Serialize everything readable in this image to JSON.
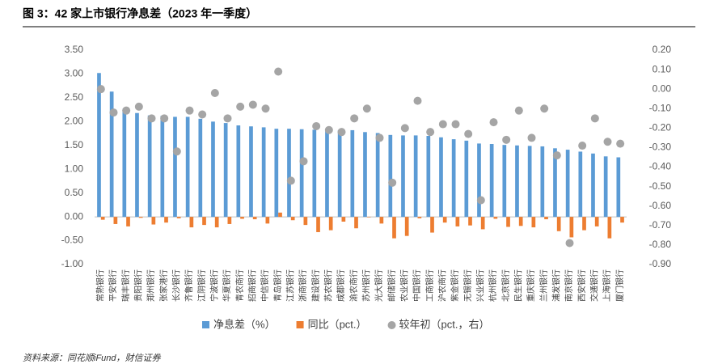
{
  "chart_data": {
    "type": "bar_dot",
    "title": "图 3：42 家上市银行净息差（2023 年一季度）",
    "source": "资料来源：同花顺iFund，财信证券",
    "categories": [
      "常熟银行",
      "平安银行",
      "瑞丰银行",
      "贵阳银行",
      "郑州银行",
      "张家港行",
      "长沙银行",
      "齐鲁银行",
      "江阴银行",
      "宁波银行",
      "华夏银行",
      "青农商行",
      "招商银行",
      "中信银行",
      "青岛银行",
      "江苏银行",
      "浙商银行",
      "建设银行",
      "苏农银行",
      "成都银行",
      "渝农商行",
      "苏州银行",
      "光大银行",
      "邮储银行",
      "农业银行",
      "中国银行",
      "工商银行",
      "沪农商行",
      "紫金银行",
      "无锡银行",
      "兴业银行",
      "杭州银行",
      "北京银行",
      "民生银行",
      "重庆银行",
      "兰州银行",
      "浦发银行",
      "南京银行",
      "西安银行",
      "交通银行",
      "上海银行",
      "厦门银行"
    ],
    "series": [
      {
        "name": "净息差（%）",
        "color": "#5b9bd5",
        "kind": "bar",
        "axis": "y",
        "values": [
          3.02,
          2.63,
          2.27,
          2.18,
          2.13,
          2.12,
          2.1,
          2.1,
          2.06,
          2.0,
          1.97,
          1.92,
          1.9,
          1.88,
          1.85,
          1.85,
          1.84,
          1.83,
          1.83,
          1.82,
          1.82,
          1.78,
          1.76,
          1.72,
          1.71,
          1.71,
          1.7,
          1.67,
          1.63,
          1.6,
          1.54,
          1.53,
          1.51,
          1.5,
          1.49,
          1.48,
          1.44,
          1.41,
          1.37,
          1.33,
          1.27,
          1.25
        ]
      },
      {
        "name": "同比（pct.）",
        "color": "#ed7d31",
        "kind": "bar",
        "axis": "y",
        "values": [
          -0.06,
          -0.15,
          -0.2,
          -0.02,
          -0.16,
          -0.12,
          -0.03,
          -0.22,
          -0.17,
          -0.22,
          -0.15,
          -0.04,
          -0.05,
          -0.14,
          0.09,
          -0.07,
          -0.17,
          -0.32,
          -0.28,
          -0.1,
          -0.24,
          -0.01,
          -0.14,
          -0.45,
          -0.4,
          -0.03,
          -0.33,
          -0.12,
          -0.2,
          -0.18,
          -0.26,
          -0.04,
          -0.21,
          -0.19,
          -0.22,
          -0.05,
          -0.3,
          -0.43,
          -0.28,
          -0.2,
          -0.45,
          -0.12
        ]
      },
      {
        "name": "较年初（pct.，右）",
        "color": "#a5a5a5",
        "kind": "dot",
        "axis": "y2",
        "values": [
          0.0,
          -0.12,
          -0.11,
          -0.09,
          -0.15,
          -0.15,
          -0.32,
          -0.11,
          -0.13,
          -0.02,
          -0.15,
          -0.09,
          -0.08,
          -0.1,
          0.09,
          -0.47,
          -0.37,
          -0.19,
          -0.21,
          -0.22,
          -0.15,
          -0.1,
          -0.25,
          -0.48,
          -0.2,
          -0.06,
          -0.22,
          -0.18,
          -0.18,
          -0.23,
          -0.57,
          -0.17,
          -0.26,
          -0.11,
          -0.25,
          -0.1,
          -0.34,
          -0.79,
          -0.29,
          -0.15,
          -0.27,
          -0.28
        ]
      }
    ],
    "ylim": [
      -1.0,
      3.5
    ],
    "yticks": [
      {
        "value": 3.5,
        "label": "3.50"
      },
      {
        "value": 3.0,
        "label": "3.00"
      },
      {
        "value": 2.5,
        "label": "2.50"
      },
      {
        "value": 2.0,
        "label": "2.00"
      },
      {
        "value": 1.5,
        "label": "1.50"
      },
      {
        "value": 1.0,
        "label": "1.00"
      },
      {
        "value": 0.5,
        "label": "0.50"
      },
      {
        "value": 0,
        "label": "0.00"
      },
      {
        "value": -0.5,
        "label": "-0.50"
      },
      {
        "value": -1.0,
        "label": "-1.00"
      }
    ],
    "y2lim": [
      -0.9,
      0.2
    ],
    "y2ticks": [
      {
        "value": 0.2,
        "label": "0.20"
      },
      {
        "value": 0.1,
        "label": "0.10"
      },
      {
        "value": 0,
        "label": "0.00"
      },
      {
        "value": -0.1,
        "label": "-0.10"
      },
      {
        "value": -0.2,
        "label": "-0.20"
      },
      {
        "value": -0.3,
        "label": "-0.30"
      },
      {
        "value": -0.4,
        "label": "-0.40"
      },
      {
        "value": -0.5,
        "label": "-0.50"
      },
      {
        "value": -0.6,
        "label": "-0.60"
      },
      {
        "value": -0.7,
        "label": "-0.70"
      },
      {
        "value": -0.8,
        "label": "-0.80"
      },
      {
        "value": -0.9,
        "label": "-0.90"
      }
    ],
    "grid": false
  }
}
